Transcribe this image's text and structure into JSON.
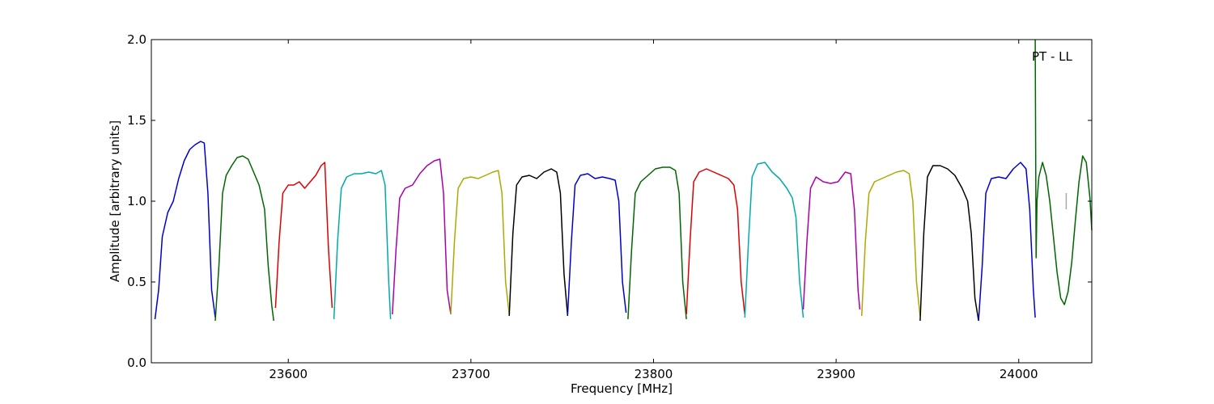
{
  "chart_data": {
    "type": "line",
    "xlabel": "Frequency [MHz]",
    "ylabel": "Amplitude [arbitrary units]",
    "annotation": "PT - LL",
    "xlim": [
      23525,
      24040
    ],
    "ylim": [
      0.0,
      2.0
    ],
    "x_ticks": [
      23600,
      23700,
      23800,
      23900,
      24000
    ],
    "y_ticks": [
      0.0,
      0.5,
      1.0,
      1.5,
      2.0
    ],
    "x_tick_labels": [
      "23600",
      "23700",
      "23800",
      "23900",
      "24000"
    ],
    "y_tick_labels": [
      "0.0",
      "0.5",
      "1.0",
      "1.5",
      "2.0"
    ],
    "grid": false,
    "series": [
      {
        "color": "#0000cc",
        "x": [
          23527,
          23529,
          23531,
          23534,
          23537,
          23540,
          23543,
          23546,
          23549,
          23552,
          23554,
          23556,
          23558,
          23560
        ],
        "y": [
          0.27,
          0.45,
          0.78,
          0.93,
          1.0,
          1.14,
          1.25,
          1.32,
          1.35,
          1.37,
          1.36,
          1.05,
          0.45,
          0.28
        ]
      },
      {
        "color": "#006600",
        "x": [
          23560,
          23562,
          23564,
          23566,
          23569,
          23572,
          23575,
          23578,
          23581,
          23584,
          23587,
          23589,
          23591,
          23592
        ],
        "y": [
          0.26,
          0.6,
          1.05,
          1.16,
          1.22,
          1.27,
          1.28,
          1.26,
          1.18,
          1.1,
          0.95,
          0.6,
          0.35,
          0.26
        ]
      },
      {
        "color": "#dd0000",
        "x": [
          23593,
          23595,
          23597,
          23600,
          23603,
          23606,
          23609,
          23612,
          23615,
          23618,
          23620,
          23622,
          23624
        ],
        "y": [
          0.34,
          0.75,
          1.05,
          1.1,
          1.1,
          1.12,
          1.08,
          1.12,
          1.16,
          1.22,
          1.24,
          0.7,
          0.34
        ]
      },
      {
        "color": "#00aaaa",
        "x": [
          23625,
          23627,
          23629,
          23632,
          23636,
          23640,
          23644,
          23648,
          23651,
          23653,
          23655,
          23656
        ],
        "y": [
          0.27,
          0.75,
          1.08,
          1.15,
          1.17,
          1.17,
          1.18,
          1.17,
          1.19,
          1.1,
          0.5,
          0.27
        ]
      },
      {
        "color": "#aa00aa",
        "x": [
          23657,
          23659,
          23661,
          23664,
          23668,
          23672,
          23676,
          23680,
          23683,
          23685,
          23687,
          23689
        ],
        "y": [
          0.3,
          0.7,
          1.02,
          1.08,
          1.1,
          1.17,
          1.22,
          1.25,
          1.26,
          1.05,
          0.45,
          0.3
        ]
      },
      {
        "color": "#aaaa00",
        "x": [
          23689,
          23691,
          23693,
          23696,
          23700,
          23704,
          23708,
          23712,
          23715,
          23717,
          23719,
          23721
        ],
        "y": [
          0.3,
          0.75,
          1.08,
          1.14,
          1.15,
          1.14,
          1.16,
          1.18,
          1.19,
          1.05,
          0.5,
          0.3
        ]
      },
      {
        "color": "#000000",
        "x": [
          23721,
          23723,
          23725,
          23728,
          23732,
          23736,
          23740,
          23744,
          23747,
          23749,
          23751,
          23753
        ],
        "y": [
          0.29,
          0.8,
          1.1,
          1.15,
          1.16,
          1.14,
          1.18,
          1.2,
          1.18,
          1.05,
          0.55,
          0.29
        ]
      },
      {
        "color": "#0000cc",
        "x": [
          23753,
          23755,
          23757,
          23760,
          23764,
          23768,
          23772,
          23776,
          23779,
          23781,
          23783,
          23785
        ],
        "y": [
          0.3,
          0.75,
          1.1,
          1.16,
          1.17,
          1.14,
          1.15,
          1.14,
          1.13,
          1.0,
          0.5,
          0.31
        ]
      },
      {
        "color": "#006600",
        "x": [
          23786,
          23788,
          23790,
          23793,
          23797,
          23801,
          23805,
          23809,
          23812,
          23814,
          23816,
          23818
        ],
        "y": [
          0.27,
          0.7,
          1.05,
          1.12,
          1.16,
          1.2,
          1.21,
          1.21,
          1.19,
          1.05,
          0.5,
          0.27
        ]
      },
      {
        "color": "#dd0000",
        "x": [
          23818,
          23820,
          23822,
          23825,
          23829,
          23833,
          23837,
          23841,
          23844,
          23846,
          23848,
          23850
        ],
        "y": [
          0.3,
          0.75,
          1.12,
          1.18,
          1.2,
          1.18,
          1.16,
          1.14,
          1.1,
          0.95,
          0.5,
          0.3
        ]
      },
      {
        "color": "#00aaaa",
        "x": [
          23850,
          23852,
          23854,
          23857,
          23861,
          23865,
          23869,
          23873,
          23876,
          23878,
          23880,
          23882
        ],
        "y": [
          0.28,
          0.75,
          1.15,
          1.23,
          1.24,
          1.18,
          1.14,
          1.08,
          1.02,
          0.9,
          0.5,
          0.28
        ]
      },
      {
        "color": "#aa00aa",
        "x": [
          23882,
          23884,
          23886,
          23889,
          23893,
          23897,
          23901,
          23905,
          23908,
          23910,
          23912,
          23913
        ],
        "y": [
          0.33,
          0.75,
          1.08,
          1.15,
          1.12,
          1.11,
          1.12,
          1.18,
          1.17,
          0.95,
          0.45,
          0.33
        ]
      },
      {
        "color": "#aaaa00",
        "x": [
          23914,
          23916,
          23918,
          23921,
          23925,
          23929,
          23933,
          23937,
          23940,
          23942,
          23944,
          23946
        ],
        "y": [
          0.29,
          0.75,
          1.05,
          1.12,
          1.14,
          1.16,
          1.18,
          1.19,
          1.17,
          1.0,
          0.5,
          0.29
        ]
      },
      {
        "color": "#000000",
        "x": [
          23946,
          23948,
          23950,
          23953,
          23957,
          23961,
          23965,
          23969,
          23972,
          23974,
          23976,
          23978
        ],
        "y": [
          0.26,
          0.8,
          1.15,
          1.22,
          1.22,
          1.2,
          1.16,
          1.08,
          1.0,
          0.8,
          0.4,
          0.26
        ]
      },
      {
        "color": "#0000cc",
        "x": [
          23978,
          23980,
          23982,
          23985,
          23989,
          23993,
          23997,
          24001,
          24004,
          24006,
          24008,
          24009
        ],
        "y": [
          0.26,
          0.6,
          1.05,
          1.14,
          1.15,
          1.14,
          1.2,
          1.24,
          1.2,
          0.95,
          0.45,
          0.28
        ]
      },
      {
        "color": "#006600",
        "x": [
          24009,
          24009.5,
          24010,
          24011,
          24013,
          24015,
          24017,
          24019,
          24021,
          24023,
          24025,
          24027,
          24029,
          24031,
          24033,
          24035,
          24037,
          24039,
          24040
        ],
        "y": [
          2.0,
          0.65,
          1.0,
          1.15,
          1.24,
          1.16,
          1.0,
          0.78,
          0.56,
          0.4,
          0.36,
          0.44,
          0.62,
          0.88,
          1.12,
          1.28,
          1.24,
          1.02,
          0.82
        ]
      },
      {
        "color": "#aaaaaa",
        "x": [
          24026,
          24026
        ],
        "y": [
          0.95,
          1.05
        ]
      }
    ]
  }
}
